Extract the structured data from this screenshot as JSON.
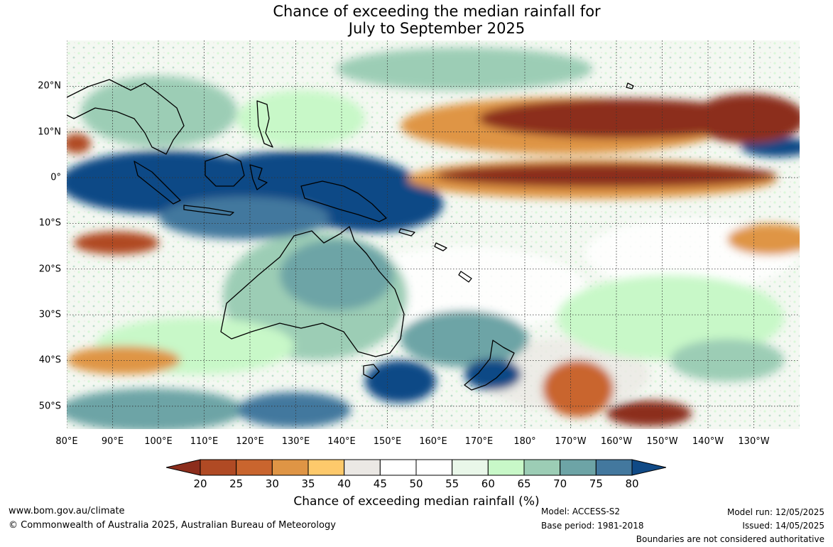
{
  "title_line1": "Chance of exceeding the median rainfall for",
  "title_line2": "July to September 2025",
  "lat_labels": [
    {
      "text": "20°N",
      "lat": 20
    },
    {
      "text": "10°N",
      "lat": 10
    },
    {
      "text": "0°",
      "lat": 0
    },
    {
      "text": "10°S",
      "lat": -10
    },
    {
      "text": "20°S",
      "lat": -20
    },
    {
      "text": "30°S",
      "lat": -30
    },
    {
      "text": "40°S",
      "lat": -40
    },
    {
      "text": "50°S",
      "lat": -50
    }
  ],
  "lon_labels": [
    {
      "text": "80°E",
      "lon": 80
    },
    {
      "text": "90°E",
      "lon": 90
    },
    {
      "text": "100°E",
      "lon": 100
    },
    {
      "text": "110°E",
      "lon": 110
    },
    {
      "text": "120°E",
      "lon": 120
    },
    {
      "text": "130°E",
      "lon": 130
    },
    {
      "text": "140°E",
      "lon": 140
    },
    {
      "text": "150°E",
      "lon": 150
    },
    {
      "text": "160°E",
      "lon": 160
    },
    {
      "text": "170°E",
      "lon": 170
    },
    {
      "text": "180°",
      "lon": 180
    },
    {
      "text": "170°W",
      "lon": 190
    },
    {
      "text": "160°W",
      "lon": 200
    },
    {
      "text": "150°W",
      "lon": 210
    },
    {
      "text": "140°W",
      "lon": 220
    },
    {
      "text": "130°W",
      "lon": 230
    }
  ],
  "map_extent": {
    "lon_min": 80,
    "lon_max": 240,
    "lat_min": -55,
    "lat_max": 30
  },
  "colorbar": {
    "ticks": [
      "20",
      "25",
      "30",
      "35",
      "40",
      "45",
      "50",
      "55",
      "60",
      "65",
      "70",
      "75",
      "80"
    ],
    "colors": [
      "#8c2d1c",
      "#b04a24",
      "#c9652e",
      "#df9545",
      "#fdc96b",
      "#ebe8e4",
      "#ffffff",
      "#ffffff",
      "#e9f7e9",
      "#c8f8c8",
      "#9ccdb5",
      "#6da4a6",
      "#43789e",
      "#104a86"
    ],
    "label": "Chance of exceeding median rainfall (%)"
  },
  "footer": {
    "website": "www.bom.gov.au/climate",
    "copyright": "© Commonwealth of Australia 2025, Australian Bureau of Meteorology",
    "model": "Model: ACCESS-S2",
    "base_period": "Base period: 1981-2018",
    "model_run": "Model run: 12/05/2025",
    "issued": "Issued: 14/05/2025",
    "disclaimer": "Boundaries are not considered authoritative"
  }
}
